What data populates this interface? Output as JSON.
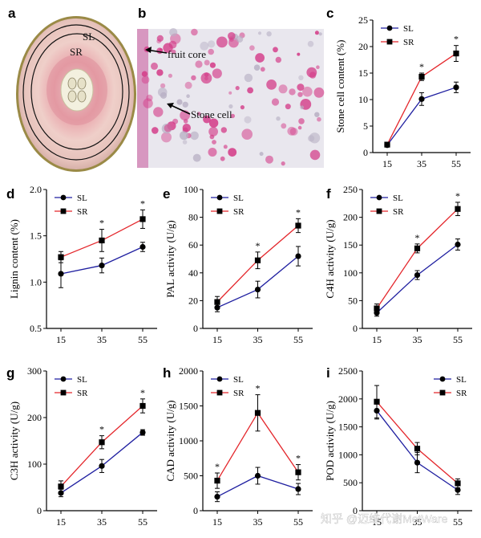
{
  "colors": {
    "SL": "#1f1fa0",
    "SR": "#e4262b",
    "axis": "#000000",
    "error": "#000000"
  },
  "legend_labels": [
    "SL",
    "SR"
  ],
  "significance_mark": "*",
  "photo_a": {
    "letter": "a",
    "labels": {
      "outer": "SL",
      "inner": "SR"
    }
  },
  "photo_b": {
    "letter": "b",
    "labels": {
      "core": "fruit core",
      "stone": "Stone cell"
    }
  },
  "watermark": "知乎 @迈维代谢MetWare",
  "chart_data": [
    {
      "id": "c",
      "letter": "c",
      "type": "line",
      "ylabel": "Stone cell content (%)",
      "x": [
        15,
        35,
        55
      ],
      "ylim": [
        0,
        25
      ],
      "yticks": [
        "0",
        "5",
        "10",
        "15",
        "20",
        "25"
      ],
      "yticks_num": [
        0,
        5,
        10,
        15,
        20,
        25
      ],
      "legend_position": "top-left",
      "series": [
        {
          "name": "SL",
          "values": [
            1.4,
            10.1,
            12.3
          ],
          "errors": [
            0.3,
            1.2,
            1.0
          ],
          "marker": "circle"
        },
        {
          "name": "SR",
          "values": [
            1.5,
            14.3,
            18.7
          ],
          "errors": [
            0.3,
            0.7,
            1.5
          ],
          "marker": "square"
        }
      ],
      "significance": [
        false,
        true,
        true
      ]
    },
    {
      "id": "d",
      "letter": "d",
      "type": "line",
      "ylabel": "Lignin content (%)",
      "x": [
        15,
        35,
        55
      ],
      "ylim": [
        0.5,
        2.0
      ],
      "yticks": [
        "0.5",
        "1.0",
        "1.5",
        "2.0"
      ],
      "yticks_num": [
        0.5,
        1.0,
        1.5,
        2.0
      ],
      "legend_position": "top-left",
      "series": [
        {
          "name": "SL",
          "values": [
            1.09,
            1.18,
            1.38
          ],
          "errors": [
            0.15,
            0.08,
            0.05
          ],
          "marker": "circle"
        },
        {
          "name": "SR",
          "values": [
            1.27,
            1.45,
            1.68
          ],
          "errors": [
            0.06,
            0.12,
            0.1
          ],
          "marker": "square"
        }
      ],
      "significance": [
        false,
        true,
        true
      ]
    },
    {
      "id": "e",
      "letter": "e",
      "type": "line",
      "ylabel": "PAL activity (U/g)",
      "x": [
        15,
        35,
        55
      ],
      "ylim": [
        0,
        100
      ],
      "yticks": [
        "0",
        "20",
        "40",
        "60",
        "80",
        "100"
      ],
      "yticks_num": [
        0,
        20,
        40,
        60,
        80,
        100
      ],
      "legend_position": "top-left",
      "series": [
        {
          "name": "SL",
          "values": [
            15,
            28,
            52
          ],
          "errors": [
            3,
            6,
            7
          ],
          "marker": "circle"
        },
        {
          "name": "SR",
          "values": [
            19,
            49,
            74
          ],
          "errors": [
            4,
            6,
            5
          ],
          "marker": "square"
        }
      ],
      "significance": [
        false,
        true,
        true
      ]
    },
    {
      "id": "f",
      "letter": "f",
      "type": "line",
      "ylabel": "C4H activity (U/g)",
      "x": [
        15,
        35,
        55
      ],
      "ylim": [
        0,
        250
      ],
      "yticks": [
        "0",
        "50",
        "100",
        "150",
        "200",
        "250"
      ],
      "yticks_num": [
        0,
        50,
        100,
        150,
        200,
        250
      ],
      "legend_position": "top-left",
      "series": [
        {
          "name": "SL",
          "values": [
            28,
            96,
            151
          ],
          "errors": [
            6,
            8,
            10
          ],
          "marker": "circle"
        },
        {
          "name": "SR",
          "values": [
            36,
            144,
            215
          ],
          "errors": [
            8,
            8,
            12
          ],
          "marker": "square"
        }
      ],
      "significance": [
        false,
        true,
        true
      ]
    },
    {
      "id": "g",
      "letter": "g",
      "type": "line",
      "ylabel": "C3H activity (U/g)",
      "x": [
        15,
        35,
        55
      ],
      "ylim": [
        0,
        300
      ],
      "yticks": [
        "0",
        "100",
        "200",
        "300"
      ],
      "yticks_num": [
        0,
        100,
        200,
        300
      ],
      "legend_position": "top-left",
      "series": [
        {
          "name": "SL",
          "values": [
            38,
            96,
            168
          ],
          "errors": [
            8,
            14,
            6
          ],
          "marker": "circle"
        },
        {
          "name": "SR",
          "values": [
            52,
            147,
            225
          ],
          "errors": [
            12,
            14,
            15
          ],
          "marker": "square"
        }
      ],
      "significance": [
        false,
        true,
        true
      ]
    },
    {
      "id": "h",
      "letter": "h",
      "type": "line",
      "ylabel": "CAD activity (U/g)",
      "x": [
        15,
        35,
        55
      ],
      "ylim": [
        0,
        2000
      ],
      "yticks": [
        "0",
        "500",
        "1000",
        "1500",
        "2000"
      ],
      "yticks_num": [
        0,
        500,
        1000,
        1500,
        2000
      ],
      "legend_position": "top-left",
      "series": [
        {
          "name": "SL",
          "values": [
            200,
            500,
            310
          ],
          "errors": [
            70,
            120,
            80
          ],
          "marker": "circle"
        },
        {
          "name": "SR",
          "values": [
            430,
            1400,
            550
          ],
          "errors": [
            110,
            260,
            110
          ],
          "marker": "square"
        }
      ],
      "significance": [
        true,
        true,
        true
      ]
    },
    {
      "id": "i",
      "letter": "i",
      "type": "line",
      "ylabel": "POD activity (U/g)",
      "x": [
        15,
        35,
        55
      ],
      "ylim": [
        0,
        2500
      ],
      "yticks": [
        "0",
        "500",
        "1000",
        "1500",
        "2000",
        "2500"
      ],
      "yticks_num": [
        0,
        500,
        1000,
        1500,
        2000,
        2500
      ],
      "legend_position": "top-right",
      "series": [
        {
          "name": "SL",
          "values": [
            1790,
            860,
            370
          ],
          "errors": [
            150,
            180,
            80
          ],
          "marker": "circle"
        },
        {
          "name": "SR",
          "values": [
            1950,
            1110,
            490
          ],
          "errors": [
            290,
            110,
            80
          ],
          "marker": "square"
        }
      ],
      "significance": [
        false,
        false,
        false
      ]
    }
  ]
}
